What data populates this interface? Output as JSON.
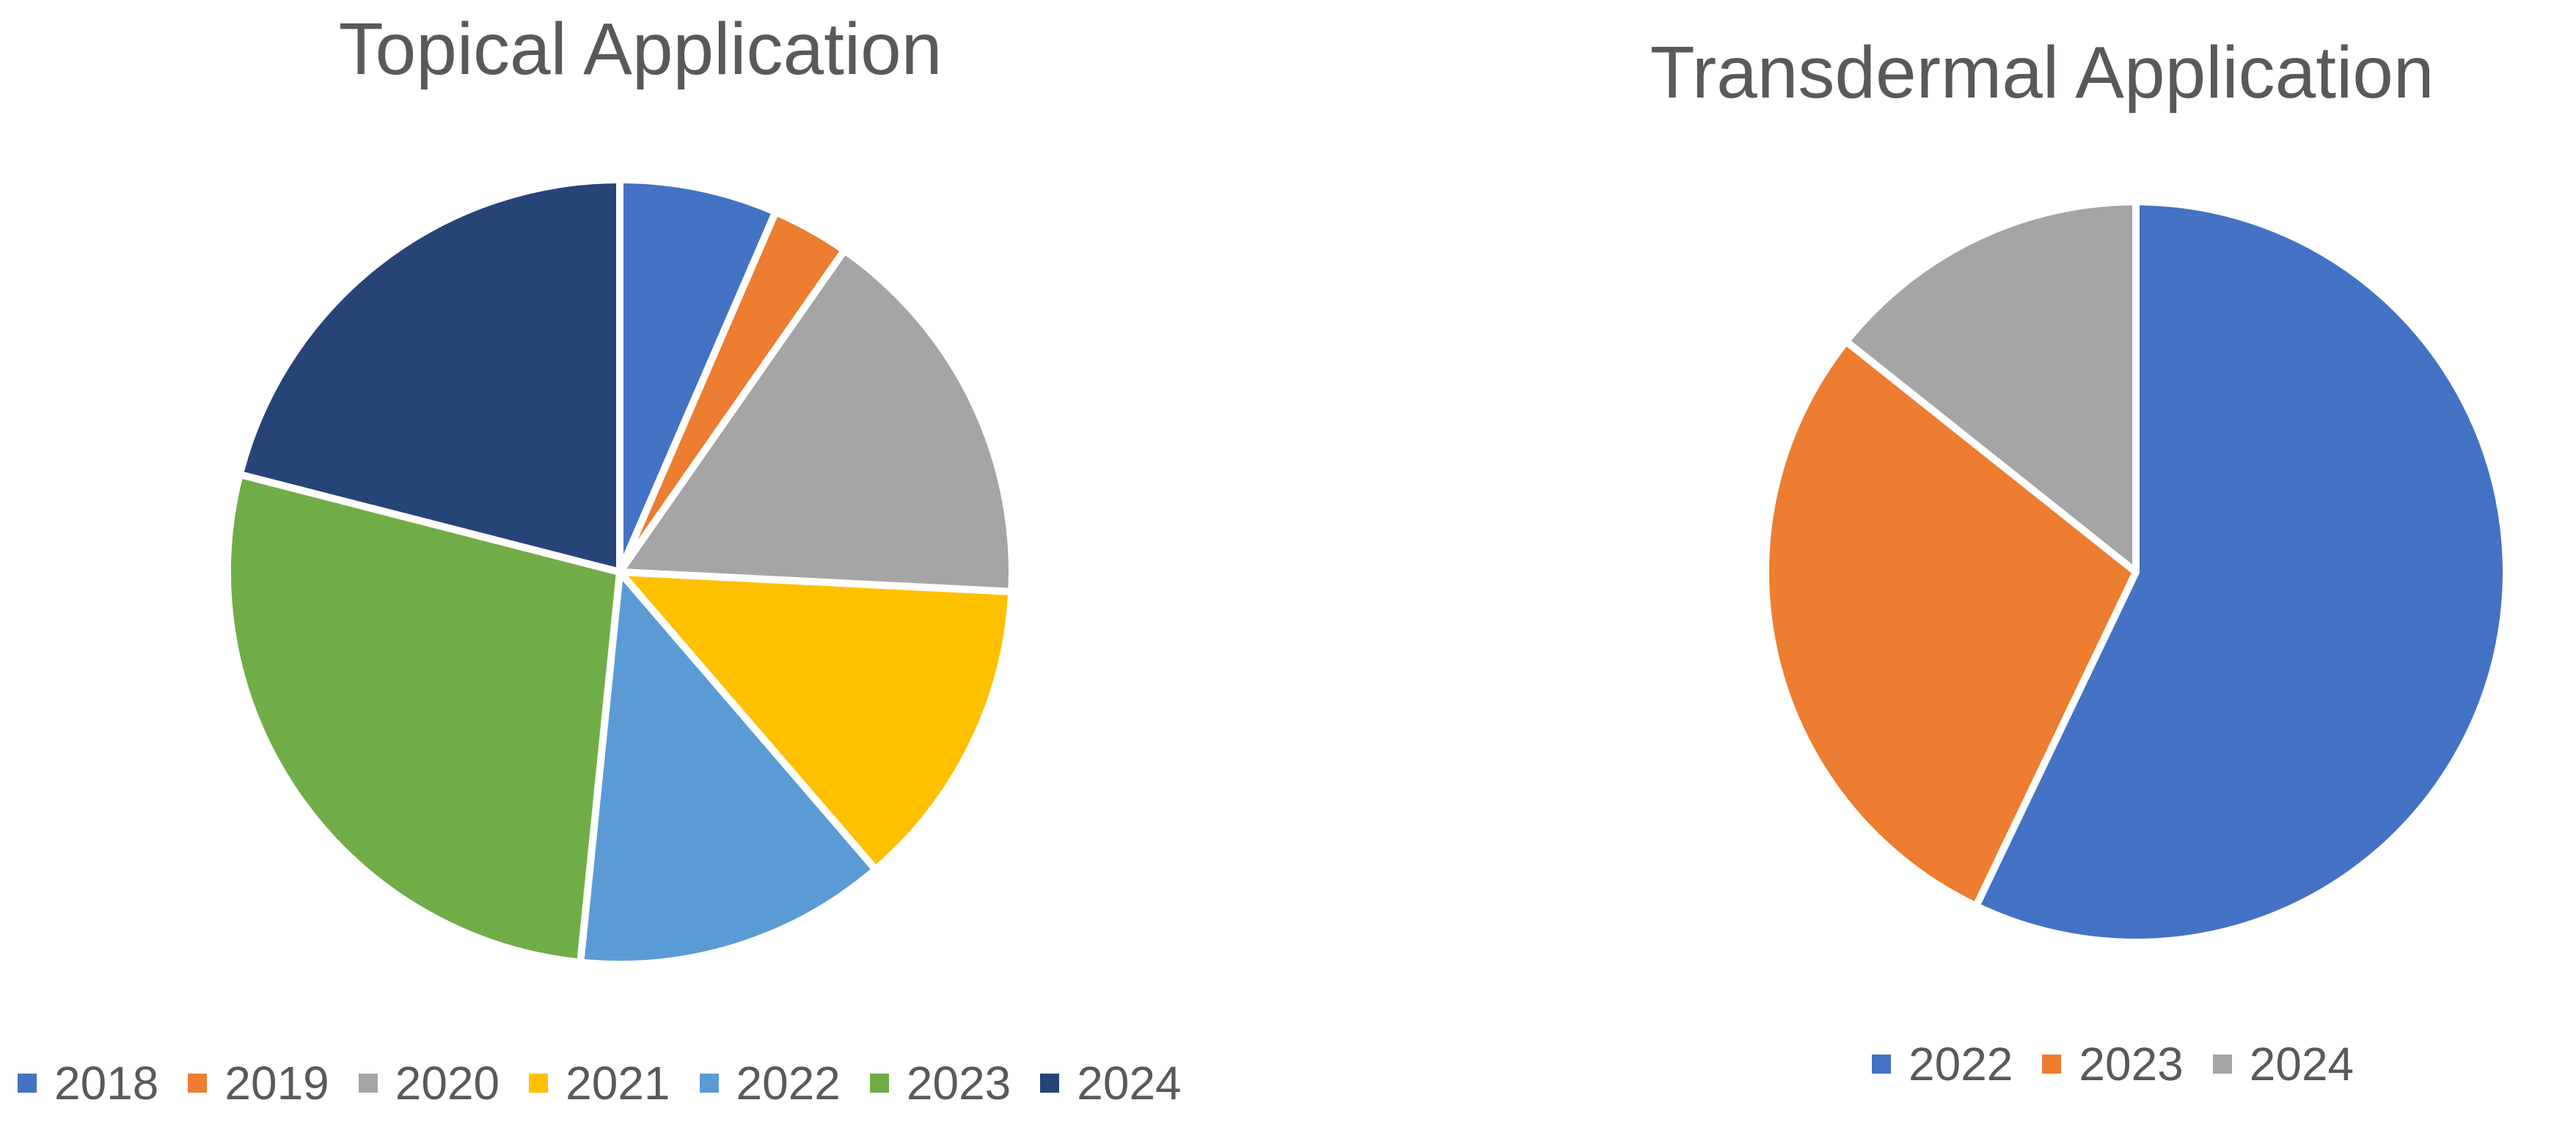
{
  "chart_data": [
    {
      "type": "pie",
      "title": "Topical Application",
      "categories": [
        "2018",
        "2019",
        "2020",
        "2021",
        "2022",
        "2023",
        "2024"
      ],
      "values": [
        6.5,
        3.2,
        16.1,
        12.9,
        12.9,
        27.4,
        21.0
      ],
      "colors": [
        "#4472C4",
        "#ED7D31",
        "#A5A5A5",
        "#FFC000",
        "#5B9BD5",
        "#70AD47",
        "#264478"
      ],
      "legend_position": "bottom"
    },
    {
      "type": "pie",
      "title": "Transdermal Application",
      "categories": [
        "2022",
        "2023",
        "2024"
      ],
      "values": [
        57.1,
        28.6,
        14.3
      ],
      "colors": [
        "#4472C4",
        "#ED7D31",
        "#A5A5A5"
      ],
      "legend_position": "bottom"
    }
  ]
}
